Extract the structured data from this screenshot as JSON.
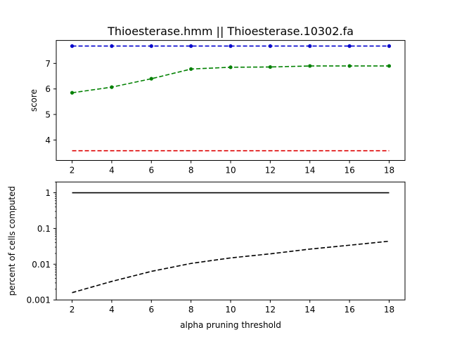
{
  "figure_title": "Thioesterase.hmm || Thioesterase.10302.fa",
  "chart_data": [
    {
      "type": "line",
      "title": "Thioesterase.hmm || Thioesterase.10302.fa",
      "xlabel": "",
      "ylabel": "score",
      "x": [
        2,
        4,
        6,
        8,
        10,
        12,
        14,
        16,
        18
      ],
      "xlim": [
        1.2,
        18.8
      ],
      "ylim": [
        3.2,
        7.9
      ],
      "xticks": [
        2,
        4,
        6,
        8,
        10,
        12,
        14,
        16,
        18
      ],
      "yticks": [
        4,
        5,
        6,
        7
      ],
      "grid": false,
      "series": [
        {
          "color": "#0000cc",
          "linestyle": "dashed",
          "marker": "dot",
          "values": [
            7.68,
            7.68,
            7.68,
            7.68,
            7.68,
            7.68,
            7.68,
            7.68,
            7.68
          ]
        },
        {
          "color": "#008000",
          "linestyle": "dashed",
          "marker": "dot",
          "values": [
            5.85,
            6.07,
            6.4,
            6.78,
            6.85,
            6.86,
            6.9,
            6.9,
            6.9
          ]
        },
        {
          "color": "#dd0000",
          "linestyle": "dashed",
          "marker": "none",
          "values": [
            3.58,
            3.58,
            3.58,
            3.58,
            3.58,
            3.58,
            3.58,
            3.58,
            3.58
          ]
        }
      ]
    },
    {
      "type": "line",
      "title": "",
      "xlabel": "alpha pruning threshold",
      "ylabel": "percent of cells computed",
      "yscale": "log",
      "x": [
        2,
        4,
        6,
        8,
        10,
        12,
        14,
        16,
        18
      ],
      "xlim": [
        1.2,
        18.8
      ],
      "ylim": [
        0.001,
        2.0
      ],
      "xticks": [
        2,
        4,
        6,
        8,
        10,
        12,
        14,
        16,
        18
      ],
      "yticks": [
        0.001,
        0.01,
        0.1,
        1
      ],
      "ytick_labels": [
        "0.001",
        "0.01",
        "0.1",
        "1"
      ],
      "grid": false,
      "series": [
        {
          "color": "#000000",
          "linestyle": "solid",
          "marker": "none",
          "values": [
            1,
            1,
            1,
            1,
            1,
            1,
            1,
            1,
            1
          ]
        },
        {
          "color": "#000000",
          "linestyle": "dashed",
          "marker": "none",
          "values": [
            0.0016,
            0.0033,
            0.0063,
            0.0105,
            0.015,
            0.0195,
            0.0265,
            0.034,
            0.044
          ]
        }
      ]
    }
  ]
}
